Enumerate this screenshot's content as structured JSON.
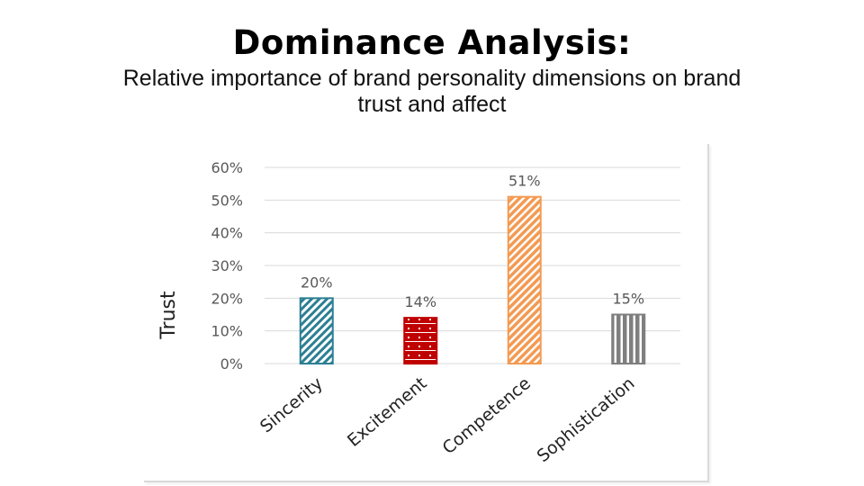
{
  "slide": {
    "title": "Dominance Analysis:",
    "subtitle_line1": "Relative importance of brand personality dimensions on brand",
    "subtitle_line2": "trust and affect"
  },
  "chart_data": {
    "type": "bar",
    "ylabel": "Trust",
    "xlabel": "",
    "ylim": [
      0,
      60
    ],
    "yticks": [
      0,
      10,
      20,
      30,
      40,
      50,
      60
    ],
    "ytick_labels": [
      "0%",
      "10%",
      "20%",
      "30%",
      "40%",
      "50%",
      "60%"
    ],
    "grid": true,
    "categories": [
      "Sincerity",
      "Excitement",
      "Competence",
      "Sophistication"
    ],
    "values": [
      20,
      14,
      51,
      15
    ],
    "data_labels": [
      "20%",
      "14%",
      "51%",
      "15%"
    ],
    "colors": [
      "#2b7f93",
      "#c00000",
      "#f39a52",
      "#7f7f7f"
    ],
    "patterns": [
      "diagonal-hatch",
      "brick",
      "diagonal-stripes",
      "vertical-stripes"
    ]
  }
}
